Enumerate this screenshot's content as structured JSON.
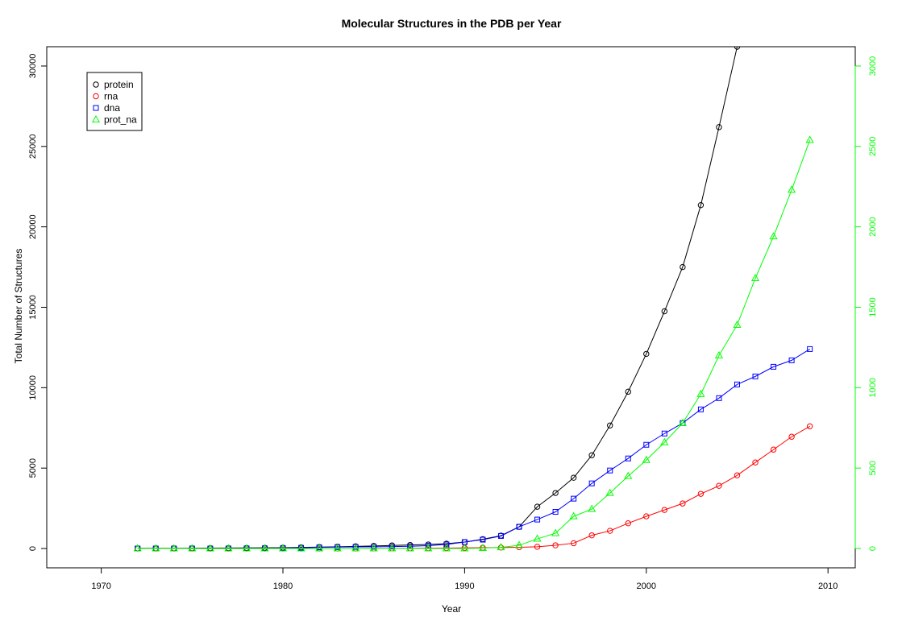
{
  "chart_data": {
    "type": "line",
    "title": "Molecular Structures in the PDB per Year",
    "xlabel": "Year",
    "ylabel": "Total Number of Structures",
    "xlim": [
      1967,
      2011.5
    ],
    "ylim": [
      -1200,
      31200
    ],
    "y2lim": [
      -120,
      3120
    ],
    "x_ticks": [
      1970,
      1980,
      1990,
      2000,
      2010
    ],
    "y_ticks": [
      0,
      5000,
      10000,
      15000,
      20000,
      25000,
      30000
    ],
    "y2_ticks": [
      0,
      500,
      1000,
      1500,
      2000,
      2500,
      3000
    ],
    "y2_color": "#00ff00",
    "legend_position": "top-left",
    "x": [
      1972,
      1973,
      1974,
      1975,
      1976,
      1977,
      1978,
      1979,
      1980,
      1981,
      1982,
      1983,
      1984,
      1985,
      1986,
      1987,
      1988,
      1989,
      1990,
      1991,
      1992,
      1993,
      1994,
      1995,
      1996,
      1997,
      1998,
      1999,
      2000,
      2001,
      2002,
      2003,
      2004,
      2005,
      2006,
      2007,
      2008,
      2009
    ],
    "series": [
      {
        "name": "protein",
        "color": "#000000",
        "marker": "circle",
        "axis": "left",
        "values": [
          13,
          14,
          16,
          21,
          26,
          31,
          37,
          45,
          55,
          71,
          89,
          110,
          135,
          160,
          190,
          220,
          250,
          300,
          400,
          580,
          800,
          1350,
          2600,
          3450,
          4400,
          5800,
          7650,
          9750,
          12100,
          14750,
          17500,
          21350,
          26200,
          31200,
          null,
          null,
          null,
          null
        ]
      },
      {
        "name": "rna",
        "color": "#ff0000",
        "marker": "circle",
        "axis": "left",
        "values": [
          0,
          0,
          0,
          0,
          0,
          0,
          0,
          0,
          0,
          0,
          0,
          0,
          0,
          5,
          10,
          15,
          20,
          30,
          40,
          50,
          60,
          80,
          110,
          200,
          330,
          820,
          1100,
          1570,
          2000,
          2400,
          2800,
          3400,
          3900,
          4550,
          5350,
          6150,
          6950,
          7600
        ]
      },
      {
        "name": "dna",
        "color": "#0000ff",
        "marker": "square",
        "axis": "left",
        "values": [
          0,
          0,
          0,
          0,
          0,
          0,
          5,
          10,
          20,
          40,
          70,
          90,
          100,
          110,
          120,
          140,
          180,
          250,
          400,
          550,
          780,
          1350,
          1800,
          2280,
          3100,
          4050,
          4850,
          5600,
          6450,
          7150,
          7800,
          8650,
          9350,
          10200,
          10700,
          11300,
          11700,
          12400
        ]
      },
      {
        "name": "prot_na",
        "color": "#00ff00",
        "marker": "triangle",
        "axis": "right",
        "values": [
          0,
          0,
          0,
          0,
          0,
          0,
          0,
          0,
          0,
          0,
          0,
          0,
          0,
          0,
          0,
          0,
          0,
          0,
          0,
          3,
          7,
          20,
          60,
          95,
          200,
          245,
          345,
          450,
          550,
          660,
          780,
          960,
          1200,
          1390,
          1680,
          1940,
          2230,
          2540
        ]
      }
    ]
  }
}
